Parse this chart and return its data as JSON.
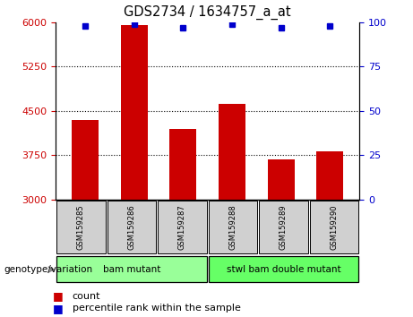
{
  "title": "GDS2734 / 1634757_a_at",
  "samples": [
    "GSM159285",
    "GSM159286",
    "GSM159287",
    "GSM159288",
    "GSM159289",
    "GSM159290"
  ],
  "counts": [
    4350,
    5950,
    4200,
    4620,
    3680,
    3820
  ],
  "percentile_ranks": [
    98,
    99,
    97,
    99,
    97,
    98
  ],
  "ylim_left": [
    3000,
    6000
  ],
  "ylim_right": [
    0,
    100
  ],
  "yticks_left": [
    3000,
    3750,
    4500,
    5250,
    6000
  ],
  "yticks_right": [
    0,
    25,
    50,
    75,
    100
  ],
  "bar_color": "#cc0000",
  "dot_color": "#0000cc",
  "groups": [
    {
      "label": "bam mutant",
      "samples": [
        0,
        1,
        2
      ],
      "color": "#99ff99"
    },
    {
      "label": "stwl bam double mutant",
      "samples": [
        3,
        4,
        5
      ],
      "color": "#66ff66"
    }
  ],
  "group_label": "genotype/variation",
  "legend_count_label": "count",
  "legend_percentile_label": "percentile rank within the sample",
  "left_tick_color": "#cc0000",
  "right_tick_color": "#0000cc"
}
